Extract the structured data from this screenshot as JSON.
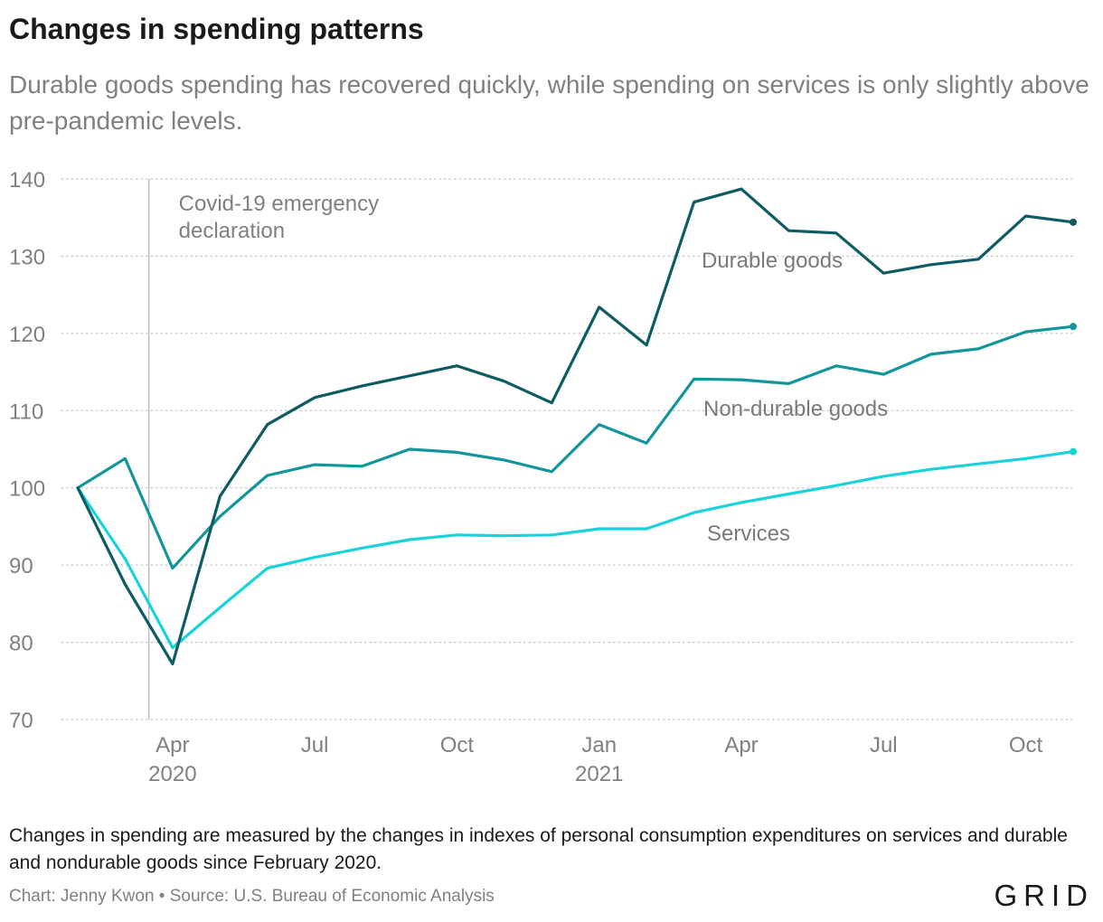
{
  "title": "Changes in spending patterns",
  "subtitle": "Durable goods spending has recovered quickly, while spending on services is only slightly above pre-pandemic levels.",
  "note": "Changes in spending are measured by the changes in indexes of personal consumption expenditures on services and durable and nondurable goods since February 2020.",
  "source": "Chart: Jenny Kwon • Source: U.S. Bureau of Economic Analysis",
  "brand": "GRID",
  "chart_data": {
    "type": "line",
    "x": [
      "2020-02",
      "2020-03",
      "2020-04",
      "2020-05",
      "2020-06",
      "2020-07",
      "2020-08",
      "2020-09",
      "2020-10",
      "2020-11",
      "2020-12",
      "2021-01",
      "2021-02",
      "2021-03",
      "2021-04",
      "2021-05",
      "2021-06",
      "2021-07",
      "2021-08",
      "2021-09",
      "2021-10",
      "2021-11"
    ],
    "x_tick_labels": [
      {
        "x": "2020-04",
        "lines": [
          "Apr",
          "2020"
        ]
      },
      {
        "x": "2020-07",
        "lines": [
          "Jul"
        ]
      },
      {
        "x": "2020-10",
        "lines": [
          "Oct"
        ]
      },
      {
        "x": "2021-01",
        "lines": [
          "Jan",
          "2021"
        ]
      },
      {
        "x": "2021-04",
        "lines": [
          "Apr"
        ]
      },
      {
        "x": "2021-07",
        "lines": [
          "Jul"
        ]
      },
      {
        "x": "2021-10",
        "lines": [
          "Oct"
        ]
      }
    ],
    "ylim": [
      70,
      140
    ],
    "y_ticks": [
      70,
      80,
      90,
      100,
      110,
      120,
      130,
      140
    ],
    "grid": "horizontal dotted",
    "series": [
      {
        "name": "Durable goods",
        "color": "#0d5c63",
        "values": [
          100,
          87.5,
          77.2,
          98.9,
          108.2,
          111.7,
          113.2,
          114.5,
          115.8,
          113.8,
          111.0,
          123.4,
          118.5,
          137.0,
          138.7,
          133.3,
          133.0,
          127.8,
          128.9,
          129.6,
          135.2,
          134.4
        ]
      },
      {
        "name": "Non-durable goods",
        "color": "#12959b",
        "values": [
          100,
          103.8,
          89.6,
          96.3,
          101.6,
          103.0,
          102.8,
          105.0,
          104.6,
          103.6,
          102.1,
          108.2,
          105.8,
          114.1,
          114.0,
          113.5,
          115.8,
          114.7,
          117.3,
          118.0,
          120.2,
          120.9
        ]
      },
      {
        "name": "Services",
        "color": "#19d3db",
        "values": [
          100,
          90.8,
          79.3,
          84.5,
          89.6,
          91.0,
          92.2,
          93.3,
          93.9,
          93.8,
          93.9,
          94.7,
          94.7,
          96.8,
          98.1,
          99.2,
          100.3,
          101.5,
          102.4,
          103.1,
          103.8,
          104.7
        ]
      }
    ],
    "annotation": {
      "x": "2020-03",
      "lines": [
        "Covid-19 emergency",
        "declaration"
      ]
    }
  }
}
